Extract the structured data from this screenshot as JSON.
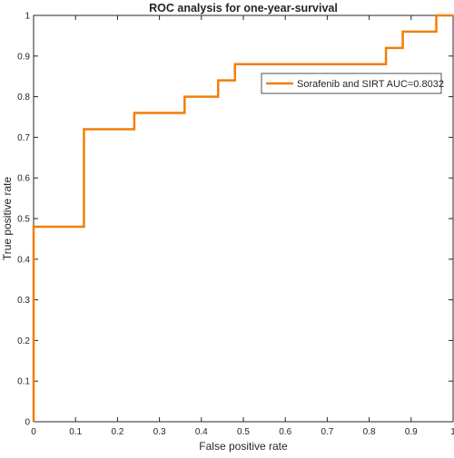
{
  "chart_data": {
    "type": "line",
    "title": "ROC analysis for one-year-survival",
    "xlabel": "False positive rate",
    "ylabel": "True positive rate",
    "xlim": [
      0,
      1
    ],
    "ylim": [
      0,
      1
    ],
    "xticks": [
      "0",
      "0.1",
      "0.2",
      "0.3",
      "0.4",
      "0.5",
      "0.6",
      "0.7",
      "0.8",
      "0.9",
      "1"
    ],
    "yticks": [
      "0",
      "0.1",
      "0.2",
      "0.3",
      "0.4",
      "0.5",
      "0.6",
      "0.7",
      "0.8",
      "0.9",
      "1"
    ],
    "grid": false,
    "legend_position": "top-right",
    "series": [
      {
        "name": "Sorafenib and SIRT AUC=0.8032",
        "color": "#f07f09",
        "x": [
          0,
          0,
          0.12,
          0.12,
          0.24,
          0.24,
          0.36,
          0.36,
          0.44,
          0.44,
          0.48,
          0.48,
          0.84,
          0.84,
          0.88,
          0.88,
          0.96,
          0.96,
          1
        ],
        "y": [
          0,
          0.48,
          0.48,
          0.72,
          0.72,
          0.76,
          0.76,
          0.8,
          0.8,
          0.84,
          0.84,
          0.88,
          0.88,
          0.92,
          0.92,
          0.96,
          0.96,
          1,
          1
        ]
      }
    ]
  }
}
